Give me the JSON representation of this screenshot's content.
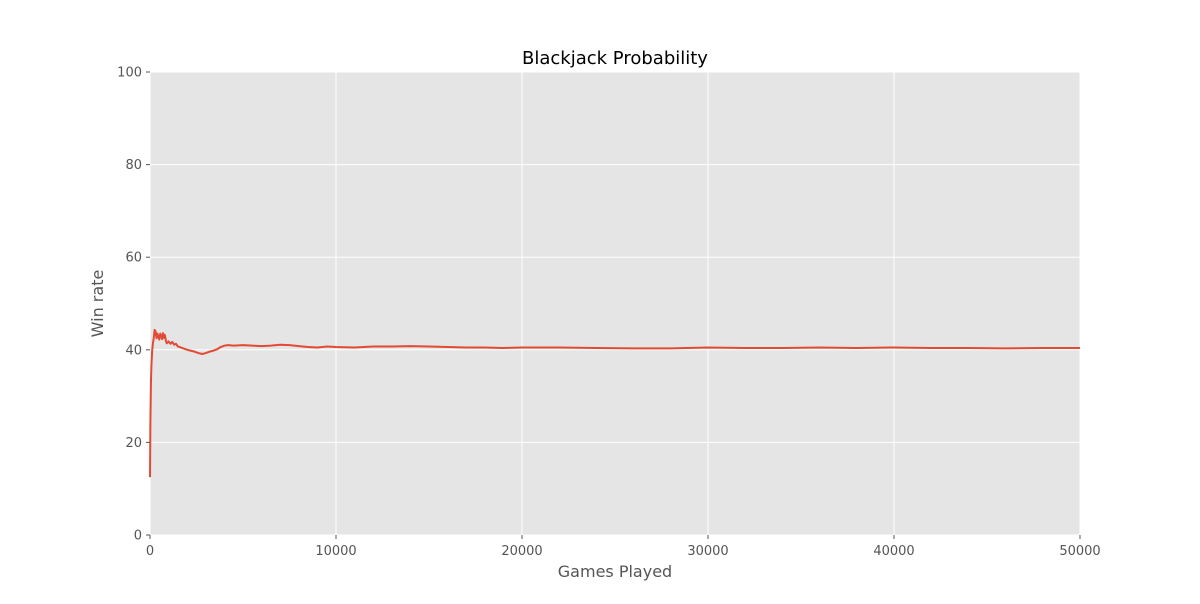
{
  "chart_data": {
    "type": "line",
    "title": "Blackjack Probability",
    "xlabel": "Games Played",
    "ylabel": "Win rate",
    "xlim": [
      0,
      50000
    ],
    "ylim": [
      0,
      100
    ],
    "xticks": [
      0,
      10000,
      20000,
      30000,
      40000,
      50000
    ],
    "yticks": [
      0,
      20,
      40,
      60,
      80,
      100
    ],
    "grid": true,
    "series": [
      {
        "color": "#E24A33",
        "x": [
          1,
          20,
          50,
          80,
          120,
          160,
          200,
          250,
          300,
          350,
          400,
          450,
          500,
          550,
          600,
          650,
          700,
          750,
          800,
          850,
          900,
          1000,
          1100,
          1200,
          1300,
          1400,
          1500,
          1600,
          1800,
          2000,
          2200,
          2400,
          2600,
          2800,
          3000,
          3200,
          3400,
          3600,
          3800,
          4000,
          4200,
          4500,
          5000,
          5500,
          6000,
          6500,
          7000,
          7500,
          8000,
          8500,
          9000,
          9500,
          10000,
          11000,
          12000,
          13000,
          14000,
          15000,
          16000,
          17000,
          18000,
          19000,
          20000,
          22000,
          24000,
          26000,
          28000,
          30000,
          32000,
          34000,
          36000,
          38000,
          40000,
          42000,
          44000,
          46000,
          48000,
          50000
        ],
        "y": [
          12.5,
          24,
          33,
          37,
          40,
          41.5,
          42.5,
          44.3,
          44,
          42.5,
          43.5,
          42.8,
          42.2,
          43.5,
          43,
          42.3,
          43.6,
          42.6,
          43.2,
          42,
          41.4,
          41.8,
          41.3,
          41.7,
          41.1,
          41.3,
          40.7,
          40.6,
          40.3,
          40,
          39.8,
          39.6,
          39.3,
          39.1,
          39.3,
          39.6,
          39.8,
          40.1,
          40.6,
          40.9,
          41,
          40.9,
          41,
          40.9,
          40.8,
          40.9,
          41.1,
          41,
          40.8,
          40.6,
          40.5,
          40.7,
          40.6,
          40.5,
          40.7,
          40.7,
          40.8,
          40.7,
          40.6,
          40.5,
          40.5,
          40.4,
          40.5,
          40.5,
          40.4,
          40.3,
          40.3,
          40.5,
          40.4,
          40.4,
          40.5,
          40.4,
          40.5,
          40.4,
          40.4,
          40.3,
          40.4,
          40.4
        ]
      }
    ]
  }
}
